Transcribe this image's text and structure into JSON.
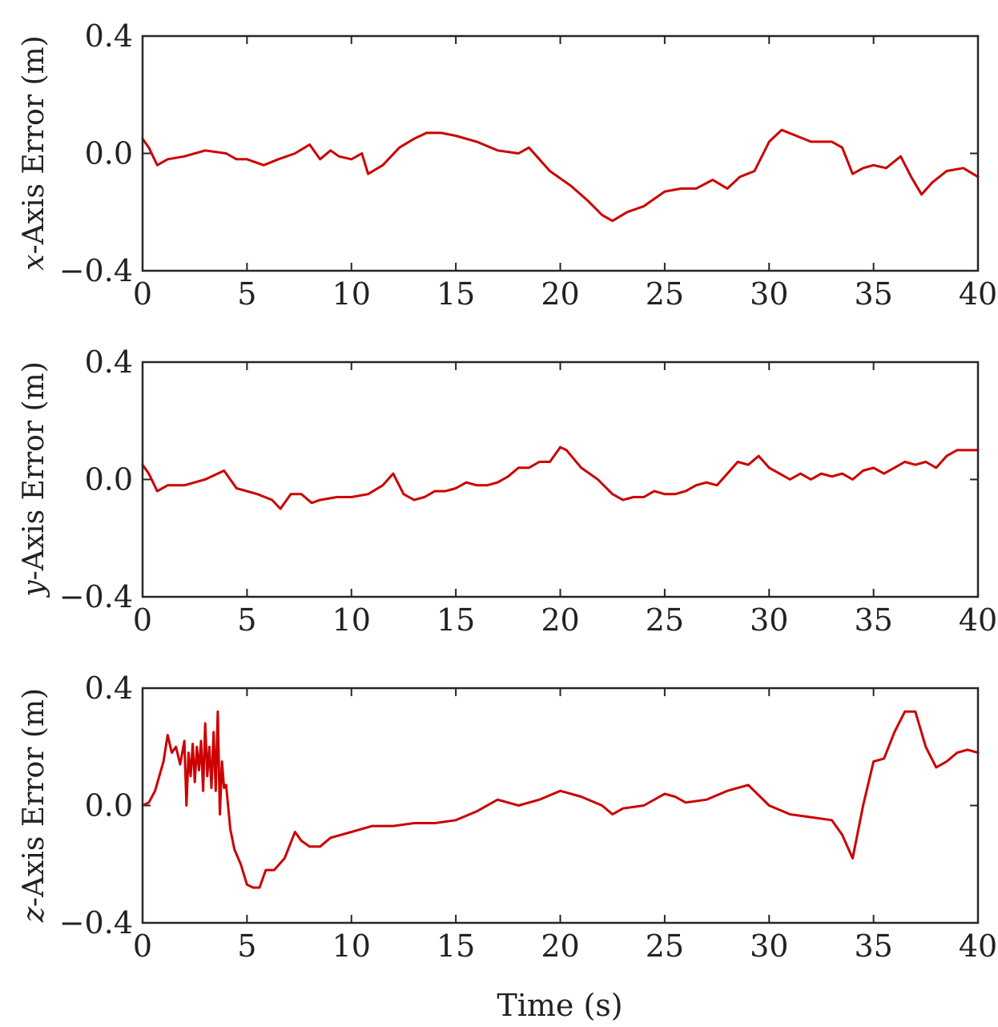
{
  "figure": {
    "xlabel": "Time (s)",
    "line_color": "#cc0000"
  },
  "chart_data": [
    {
      "type": "line",
      "ylabel": "x-Axis Error (m)",
      "ylabel_italic": "x",
      "ylabel_rest": "-Axis Error (m)",
      "xlim": [
        0,
        40
      ],
      "ylim": [
        -0.4,
        0.4
      ],
      "xticks": [
        "0",
        "5",
        "10",
        "15",
        "20",
        "25",
        "30",
        "35",
        "40"
      ],
      "yticks": [
        "0.4",
        "0.0",
        "−0.4"
      ],
      "series": [
        {
          "x": [
            0,
            0.3,
            0.7,
            1.2,
            2,
            3,
            4,
            4.5,
            5,
            5.8,
            6.5,
            7.3,
            8,
            8.5,
            9,
            9.4,
            10,
            10.5,
            10.8,
            11.5,
            12.3,
            13,
            13.6,
            14.3,
            15,
            16,
            17,
            18,
            18.5,
            19.5,
            20.5,
            21.3,
            22,
            22.5,
            23.2,
            24,
            25,
            25.8,
            26.5,
            27.3,
            28,
            28.6,
            29.3,
            30,
            30.6,
            31.3,
            32,
            33,
            33.5,
            34,
            34.5,
            35,
            35.6,
            36.3,
            36.8,
            37.3,
            37.8,
            38.5,
            39.3,
            40
          ],
          "y": [
            0.05,
            0.02,
            -0.04,
            -0.02,
            -0.01,
            0.01,
            0.0,
            -0.02,
            -0.02,
            -0.04,
            -0.02,
            0.0,
            0.03,
            -0.02,
            0.01,
            -0.01,
            -0.02,
            0.0,
            -0.07,
            -0.04,
            0.02,
            0.05,
            0.07,
            0.07,
            0.06,
            0.04,
            0.01,
            0.0,
            0.02,
            -0.06,
            -0.11,
            -0.16,
            -0.21,
            -0.23,
            -0.2,
            -0.18,
            -0.13,
            -0.12,
            -0.12,
            -0.09,
            -0.12,
            -0.08,
            -0.06,
            0.04,
            0.08,
            0.06,
            0.04,
            0.04,
            0.02,
            -0.07,
            -0.05,
            -0.04,
            -0.05,
            -0.01,
            -0.08,
            -0.14,
            -0.1,
            -0.06,
            -0.05,
            -0.08
          ]
        }
      ]
    },
    {
      "type": "line",
      "ylabel": "y-Axis Error (m)",
      "ylabel_italic": "y",
      "ylabel_rest": "-Axis Error (m)",
      "xlim": [
        0,
        40
      ],
      "ylim": [
        -0.4,
        0.4
      ],
      "xticks": [
        "0",
        "5",
        "10",
        "15",
        "20",
        "25",
        "30",
        "35",
        "40"
      ],
      "yticks": [
        "0.4",
        "0.0",
        "−0.4"
      ],
      "series": [
        {
          "x": [
            0,
            0.3,
            0.7,
            1.2,
            2,
            3,
            3.9,
            4.5,
            5.5,
            6.2,
            6.6,
            7.1,
            7.6,
            8.1,
            8.5,
            9.3,
            10,
            10.8,
            11.5,
            12,
            12.5,
            13,
            13.5,
            14,
            14.5,
            15,
            15.5,
            16,
            16.5,
            17,
            17.5,
            18,
            18.5,
            19,
            19.5,
            20,
            20.3,
            21,
            21.8,
            22.5,
            23,
            23.5,
            24,
            24.5,
            25,
            25.5,
            26,
            26.5,
            27,
            27.5,
            28,
            28.5,
            29,
            29.5,
            30,
            30.5,
            31,
            31.5,
            32,
            32.5,
            33,
            33.5,
            34,
            34.5,
            35,
            35.5,
            36,
            36.5,
            37,
            37.5,
            38,
            38.5,
            39,
            39.5,
            40
          ],
          "y": [
            0.05,
            0.02,
            -0.04,
            -0.02,
            -0.02,
            0.0,
            0.03,
            -0.03,
            -0.05,
            -0.07,
            -0.1,
            -0.05,
            -0.05,
            -0.08,
            -0.07,
            -0.06,
            -0.06,
            -0.05,
            -0.02,
            0.02,
            -0.05,
            -0.07,
            -0.06,
            -0.04,
            -0.04,
            -0.03,
            -0.01,
            -0.02,
            -0.02,
            -0.01,
            0.01,
            0.04,
            0.04,
            0.06,
            0.06,
            0.11,
            0.1,
            0.04,
            0.0,
            -0.05,
            -0.07,
            -0.06,
            -0.06,
            -0.04,
            -0.05,
            -0.05,
            -0.04,
            -0.02,
            -0.01,
            -0.02,
            0.02,
            0.06,
            0.05,
            0.08,
            0.04,
            0.02,
            0.0,
            0.02,
            0.0,
            0.02,
            0.01,
            0.02,
            0.0,
            0.03,
            0.04,
            0.02,
            0.04,
            0.06,
            0.05,
            0.06,
            0.04,
            0.08,
            0.1,
            0.1,
            0.1
          ]
        }
      ]
    },
    {
      "type": "line",
      "ylabel": "z-Axis Error (m)",
      "ylabel_italic": "z",
      "ylabel_rest": "-Axis Error (m)",
      "xlim": [
        0,
        40
      ],
      "ylim": [
        -0.4,
        0.4
      ],
      "xticks": [
        "0",
        "5",
        "10",
        "15",
        "20",
        "25",
        "30",
        "35",
        "40"
      ],
      "yticks": [
        "0.4",
        "0.0",
        "−0.4"
      ],
      "series": [
        {
          "x": [
            0,
            0.3,
            0.6,
            1.0,
            1.2,
            1.4,
            1.6,
            1.8,
            2.0,
            2.1,
            2.2,
            2.3,
            2.4,
            2.5,
            2.6,
            2.7,
            2.8,
            2.9,
            3.0,
            3.1,
            3.2,
            3.3,
            3.4,
            3.5,
            3.6,
            3.7,
            3.8,
            3.9,
            4.0,
            4.2,
            4.4,
            4.7,
            5.0,
            5.3,
            5.6,
            5.9,
            6.3,
            6.8,
            7.3,
            7.6,
            8.0,
            8.5,
            9,
            10,
            11,
            12,
            13,
            14,
            15,
            16,
            17,
            18,
            19,
            20,
            21,
            22,
            22.5,
            23,
            24,
            25,
            25.5,
            26,
            27,
            28,
            29,
            30,
            31,
            32,
            33,
            33.5,
            34.0,
            34.5,
            35.0,
            35.5,
            36.0,
            36.5,
            37.0,
            37.5,
            38.0,
            38.5,
            39.0,
            39.5,
            40
          ],
          "y": [
            0.0,
            0.01,
            0.05,
            0.15,
            0.24,
            0.18,
            0.2,
            0.14,
            0.22,
            0.0,
            0.18,
            0.1,
            0.21,
            0.08,
            0.2,
            0.12,
            0.22,
            0.05,
            0.28,
            0.1,
            0.2,
            0.06,
            0.25,
            0.05,
            0.32,
            -0.03,
            0.15,
            0.06,
            0.07,
            -0.08,
            -0.15,
            -0.2,
            -0.27,
            -0.28,
            -0.28,
            -0.22,
            -0.22,
            -0.18,
            -0.09,
            -0.12,
            -0.14,
            -0.14,
            -0.11,
            -0.09,
            -0.07,
            -0.07,
            -0.06,
            -0.06,
            -0.05,
            -0.02,
            0.02,
            0.0,
            0.02,
            0.05,
            0.03,
            0.0,
            -0.03,
            -0.01,
            0.0,
            0.04,
            0.03,
            0.01,
            0.02,
            0.05,
            0.07,
            0.0,
            -0.03,
            -0.04,
            -0.05,
            -0.1,
            -0.18,
            0.0,
            0.15,
            0.16,
            0.25,
            0.32,
            0.32,
            0.2,
            0.13,
            0.15,
            0.18,
            0.19,
            0.18
          ]
        }
      ]
    }
  ]
}
